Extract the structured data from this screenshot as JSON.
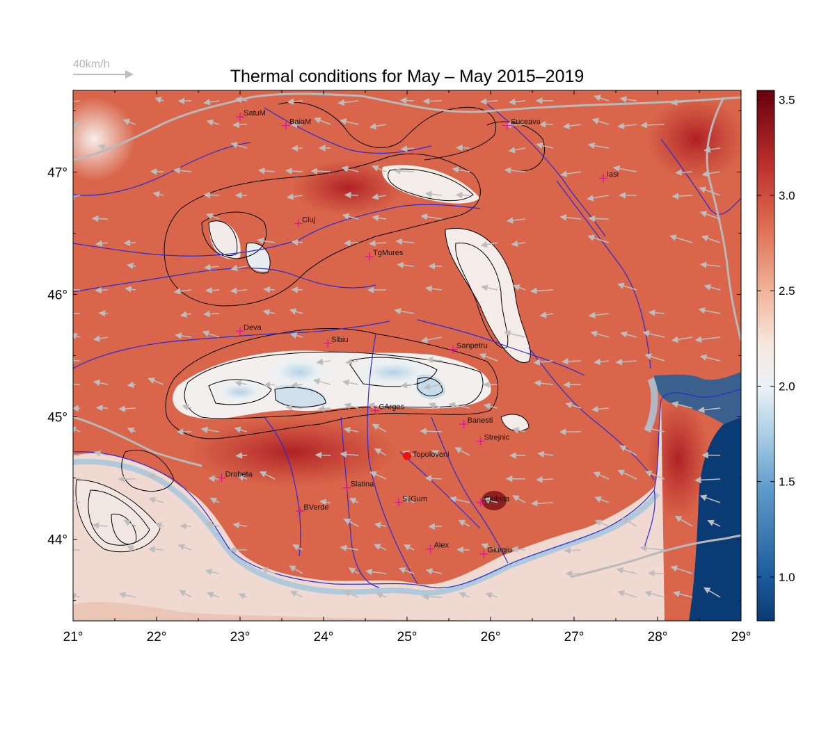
{
  "title": "Thermal conditions for May – May  2015–2019",
  "wind_scale_label": "40km/h",
  "colors": {
    "land_warm": "#d9664a",
    "land_hot": "#b3262c",
    "mountain_cool": "#f5f1ef",
    "mountain_cold": "#bcd6e8",
    "sea": "#0b3b74",
    "rivers": "#2a2ad4",
    "borders": "#b9b9b9",
    "contours": "#000000",
    "city_marker": "#e0119b",
    "highlight_marker": "#e8140e",
    "wind_arrows": "#bdbdbd"
  },
  "map": {
    "lon_range": [
      21,
      29
    ],
    "lat_range": [
      43.333,
      47.667
    ],
    "x_ticks": [
      "21°",
      "22°",
      "23°",
      "24°",
      "25°",
      "26°",
      "27°",
      "28°",
      "29°"
    ],
    "y_ticks": [
      "44°",
      "45°",
      "46°",
      "47°"
    ],
    "cities": [
      {
        "name": "SatuM",
        "lon": 23.0,
        "lat": 47.45
      },
      {
        "name": "BaiaM",
        "lon": 23.55,
        "lat": 47.38
      },
      {
        "name": "Suceava",
        "lon": 26.2,
        "lat": 47.38
      },
      {
        "name": "Iasi",
        "lon": 27.35,
        "lat": 46.95
      },
      {
        "name": "Cluj",
        "lon": 23.7,
        "lat": 46.58
      },
      {
        "name": "TgMures",
        "lon": 24.55,
        "lat": 46.31
      },
      {
        "name": "Deva",
        "lon": 23.0,
        "lat": 45.7
      },
      {
        "name": "Sibiu",
        "lon": 24.05,
        "lat": 45.6
      },
      {
        "name": "Sanpetru",
        "lon": 25.55,
        "lat": 45.55
      },
      {
        "name": "CArges",
        "lon": 24.62,
        "lat": 45.05
      },
      {
        "name": "Banesti",
        "lon": 25.68,
        "lat": 44.94
      },
      {
        "name": "Strejnic",
        "lon": 25.88,
        "lat": 44.8
      },
      {
        "name": "Drobeta",
        "lon": 22.78,
        "lat": 44.5
      },
      {
        "name": "Slatina",
        "lon": 24.28,
        "lat": 44.42
      },
      {
        "name": "SilGum",
        "lon": 24.9,
        "lat": 44.3
      },
      {
        "name": "Ciulnita",
        "lon": 25.88,
        "lat": 44.3
      },
      {
        "name": "BVerde",
        "lon": 23.72,
        "lat": 44.23
      },
      {
        "name": "Alex",
        "lon": 25.28,
        "lat": 43.92
      },
      {
        "name": "Giurgiu",
        "lon": 25.92,
        "lat": 43.88
      }
    ],
    "highlight": {
      "name": "Topoloveni",
      "lon": 25.0,
      "lat": 44.68
    }
  },
  "colorbar": {
    "min": 0.77,
    "max": 3.55,
    "ticks": [
      "1.0",
      "1.5",
      "2.0",
      "2.5",
      "3.0",
      "3.5"
    ],
    "tick_values": [
      1.0,
      1.5,
      2.0,
      2.5,
      3.0,
      3.5
    ],
    "colormap": "RdBu_r"
  }
}
